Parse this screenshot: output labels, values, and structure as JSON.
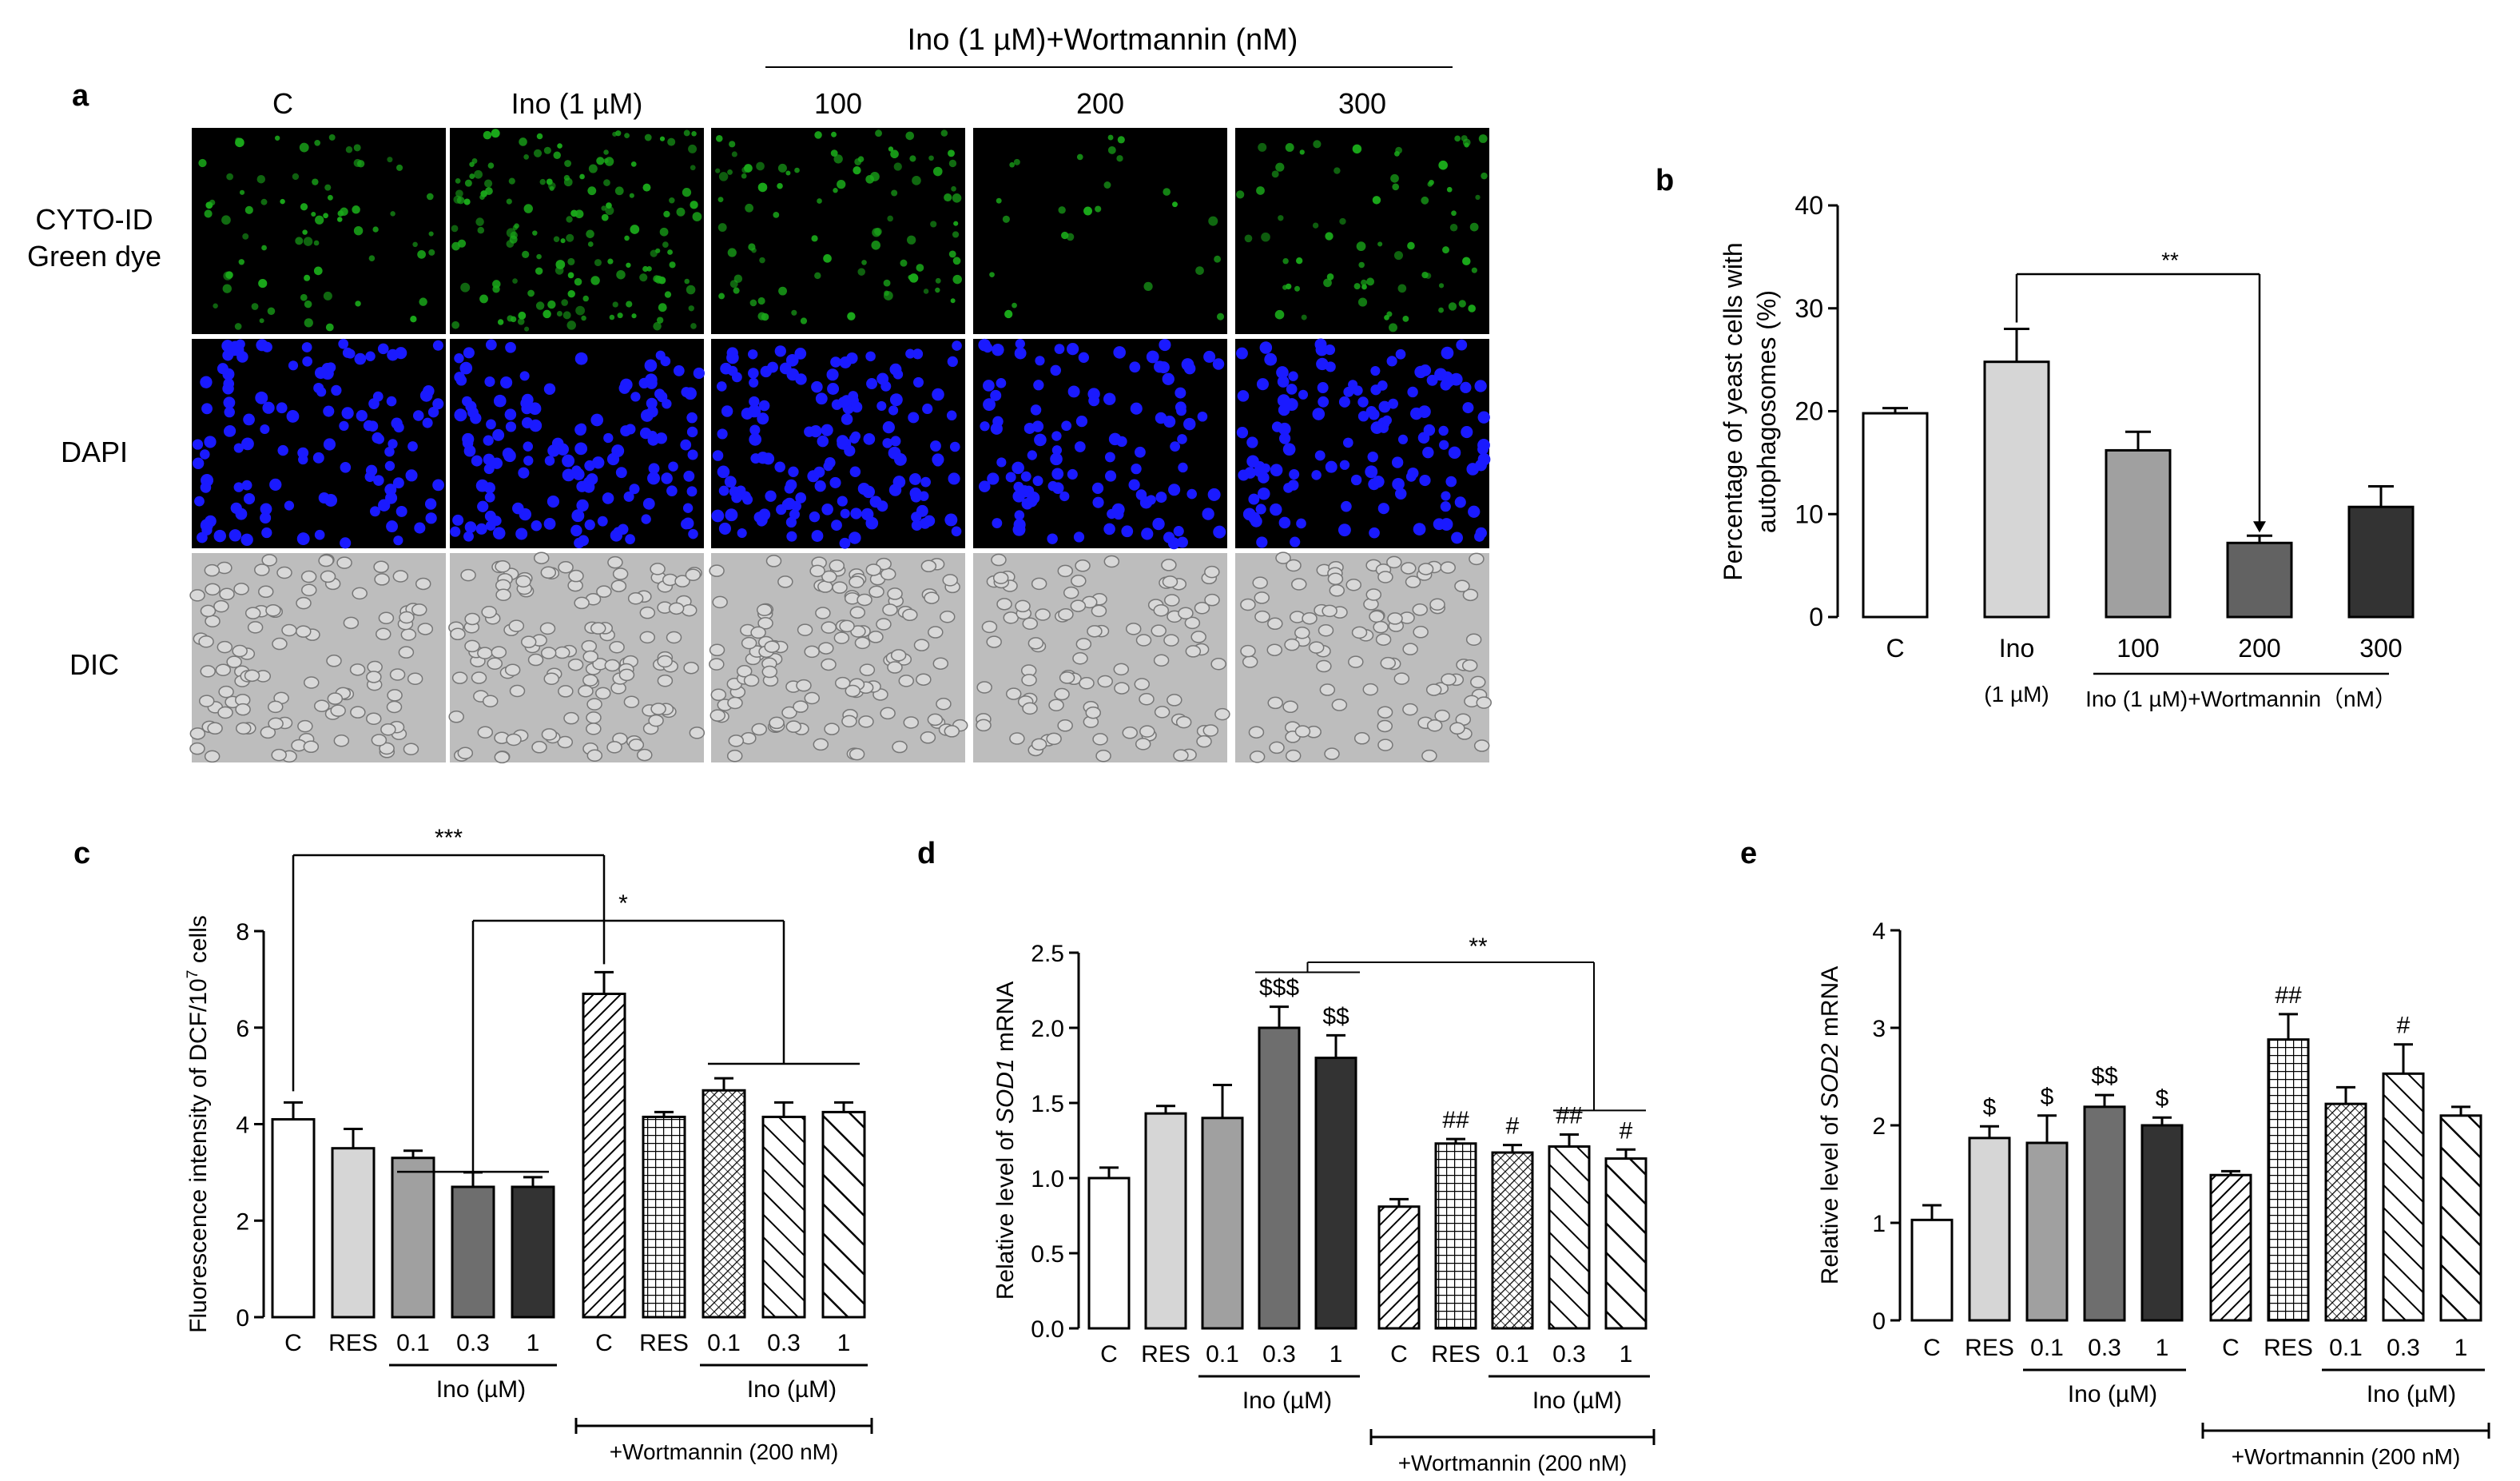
{
  "panel_a": {
    "letter": "a",
    "top_label": "Ino (1 µM)+Wortmannin (nM)",
    "columns": [
      "C",
      "Ino (1 µM)",
      "100",
      "200",
      "300"
    ],
    "rows": [
      "CYTO-ID\nGreen dye",
      "DAPI",
      "DIC"
    ],
    "row_lines": [
      [
        "CYTO-ID",
        "Green dye"
      ],
      [
        "DAPI"
      ],
      [
        "DIC"
      ]
    ],
    "colors": {
      "green": "#1aa81a",
      "blue": "#1a1aff",
      "dic_bg": "#bdbdbd"
    }
  },
  "chart_data": [
    {
      "id": "b",
      "letter": "b",
      "type": "bar",
      "categories": [
        "C",
        "Ino",
        "100",
        "200",
        "300"
      ],
      "category_sublabels": [
        "",
        "(1 µM)",
        "",
        "",
        ""
      ],
      "values": [
        19.8,
        24.8,
        16.2,
        7.2,
        10.7
      ],
      "errors": [
        0.5,
        3.2,
        1.8,
        0.7,
        2.0
      ],
      "fills": [
        "#ffffff",
        "#d6d6d6",
        "#a0a0a0",
        "#626262",
        "#333333"
      ],
      "ylabel": "Percentage of yeast cells with autophagosomes (%)",
      "ylim": [
        0,
        40
      ],
      "yticks": [
        "0",
        "10",
        "20",
        "30",
        "40"
      ],
      "group_label": "Ino (1 µM)+Wortmannin（nM）",
      "significance": [
        "**"
      ]
    },
    {
      "id": "c",
      "letter": "c",
      "type": "bar",
      "categories": [
        "C",
        "RES",
        "0.1",
        "0.3",
        "1",
        "C",
        "RES",
        "0.1",
        "0.3",
        "1"
      ],
      "values": [
        4.1,
        3.5,
        3.3,
        2.7,
        2.7,
        6.7,
        4.15,
        4.7,
        4.15,
        4.25
      ],
      "errors": [
        0.35,
        0.4,
        0.15,
        0.3,
        0.2,
        0.45,
        0.1,
        0.25,
        0.3,
        0.2
      ],
      "fills": [
        "#ffffff",
        "#d6d6d6",
        "#a0a0a0",
        "#6e6e6e",
        "#333333",
        "hatch-diag",
        "hatch-grid",
        "hatch-dots",
        "hatch-back",
        "hatch-back-wide"
      ],
      "ylabel": "Fluorescence intensity of DCF/10",
      "ylabel_sup": "7",
      "ylabel_tail": " cells",
      "ylim": [
        0,
        8
      ],
      "yticks": [
        "0",
        "2",
        "4",
        "6",
        "8"
      ],
      "group_label": "Ino (µM)",
      "wortmannin_label": "+Wortmannin (200 nM)",
      "significance": [
        "***",
        "*"
      ],
      "bar_marks": [
        "",
        "",
        "",
        "",
        "",
        "",
        "",
        "",
        "",
        ""
      ]
    },
    {
      "id": "d",
      "letter": "d",
      "type": "bar",
      "categories": [
        "C",
        "RES",
        "0.1",
        "0.3",
        "1",
        "C",
        "RES",
        "0.1",
        "0.3",
        "1"
      ],
      "values": [
        1.0,
        1.43,
        1.4,
        2.0,
        1.8,
        0.81,
        1.23,
        1.17,
        1.21,
        1.13
      ],
      "errors": [
        0.07,
        0.05,
        0.22,
        0.14,
        0.15,
        0.05,
        0.03,
        0.05,
        0.08,
        0.06
      ],
      "fills": [
        "#ffffff",
        "#d6d6d6",
        "#a0a0a0",
        "#6e6e6e",
        "#333333",
        "hatch-diag",
        "hatch-grid",
        "hatch-dots",
        "hatch-back",
        "hatch-back-wide"
      ],
      "ylabel_pre": "Relative level of ",
      "ylabel_italic": "SOD1",
      "ylabel_post": " mRNA",
      "ylim": [
        0,
        2.5
      ],
      "yticks": [
        "0.0",
        "0.5",
        "1.0",
        "1.5",
        "2.0",
        "2.5"
      ],
      "group_label": "Ino (µM)",
      "wortmannin_label": "+Wortmannin (200 nM)",
      "significance": [
        "**"
      ],
      "bar_marks": [
        "",
        "",
        "",
        "$$$",
        "$$",
        "",
        "##",
        "#",
        "##",
        "#"
      ]
    },
    {
      "id": "e",
      "letter": "e",
      "type": "bar",
      "categories": [
        "C",
        "RES",
        "0.1",
        "0.3",
        "1",
        "C",
        "RES",
        "0.1",
        "0.3",
        "1"
      ],
      "values": [
        1.03,
        1.87,
        1.82,
        2.19,
        2.0,
        1.49,
        2.88,
        2.22,
        2.53,
        2.1
      ],
      "errors": [
        0.15,
        0.12,
        0.28,
        0.12,
        0.08,
        0.04,
        0.26,
        0.17,
        0.3,
        0.09
      ],
      "fills": [
        "#ffffff",
        "#d6d6d6",
        "#a0a0a0",
        "#6e6e6e",
        "#333333",
        "hatch-diag",
        "hatch-grid",
        "hatch-dots",
        "hatch-back",
        "hatch-back-wide"
      ],
      "ylabel_pre": "Relative level of ",
      "ylabel_italic": "SOD2",
      "ylabel_post": " mRNA",
      "ylim": [
        0,
        4
      ],
      "yticks": [
        "0",
        "1",
        "2",
        "3",
        "4"
      ],
      "group_label": "Ino (µM)",
      "wortmannin_label": "+Wortmannin (200 nM)",
      "significance": [],
      "bar_marks": [
        "",
        "$",
        "$",
        "$$",
        "$",
        "",
        "##",
        "",
        "#",
        ""
      ]
    }
  ]
}
